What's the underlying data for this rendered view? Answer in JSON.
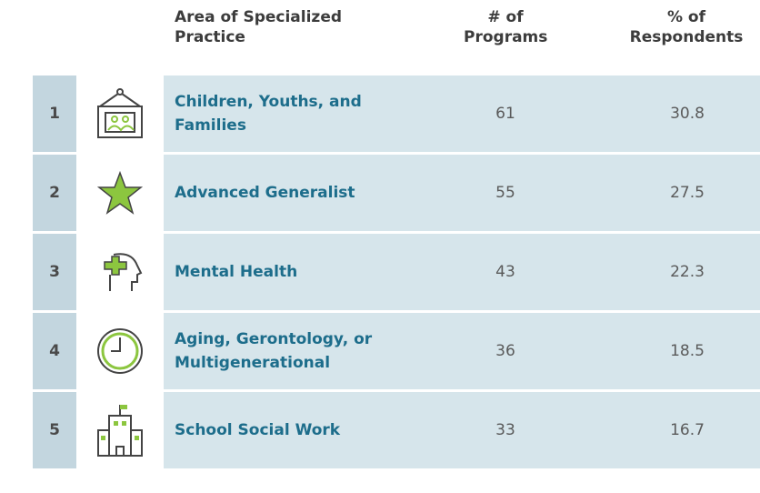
{
  "header": {
    "area": "Area of Specialized Practice",
    "programs": "# of Programs",
    "respondents": "% of Respondents"
  },
  "rows": [
    {
      "rank": "1",
      "area": "Children, Youths, and Families",
      "programs": "61",
      "respondents": "30.8"
    },
    {
      "rank": "2",
      "area": "Advanced Generalist",
      "programs": "55",
      "respondents": "27.5"
    },
    {
      "rank": "3",
      "area": "Mental Health",
      "programs": "43",
      "respondents": "22.3"
    },
    {
      "rank": "4",
      "area": "Aging, Gerontology, or Multigenerational",
      "programs": "36",
      "respondents": "18.5"
    },
    {
      "rank": "5",
      "area": "School Social Work",
      "programs": "33",
      "respondents": "16.7"
    }
  ]
}
